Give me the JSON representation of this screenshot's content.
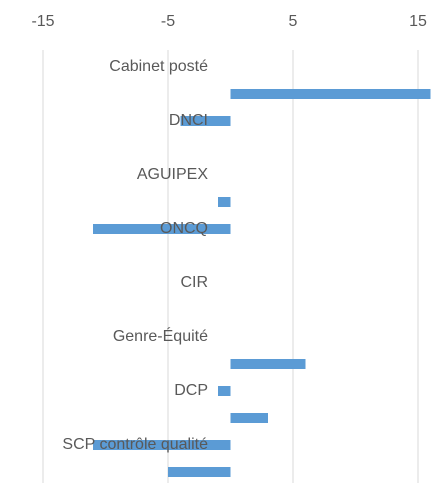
{
  "chart_data": {
    "type": "hbar",
    "categories": [
      "Cabinet posté",
      null,
      "DNCI",
      null,
      "AGUIPEX",
      null,
      "ONCQ",
      null,
      "CIR",
      null,
      "Genre-Équité",
      null,
      "DCP",
      null,
      "SCP contrôle qualité",
      null
    ],
    "values": [
      0,
      16,
      -4,
      0,
      0,
      -1,
      -11,
      0,
      0,
      0,
      0,
      6,
      -1,
      3,
      -11,
      -5
    ],
    "color": "#5b9bd5",
    "xlim": [
      -16,
      16
    ],
    "xticks": [
      -15,
      -5,
      5,
      15
    ],
    "grid": true
  }
}
